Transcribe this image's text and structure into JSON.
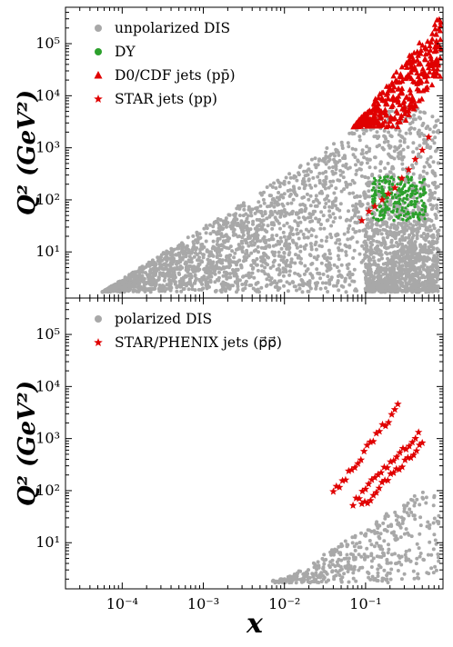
{
  "figure": {
    "xlabel": "x",
    "ylabel_top": "Q² (GeV²)",
    "ylabel_bottom": "Q² (GeV²)"
  },
  "chart_data": [
    {
      "type": "scatter",
      "panel": "top",
      "x_scale": "log",
      "y_scale": "log",
      "xlim": [
        2e-05,
        0.9
      ],
      "ylim": [
        1.3,
        500000
      ],
      "xticks": [
        "10⁻⁴",
        "10⁻³",
        "10⁻²",
        "10⁻¹"
      ],
      "yticks": [
        "10¹",
        "10²",
        "10³",
        "10⁴",
        "10⁵"
      ],
      "legend_position": "top-left",
      "colors": {
        "dis": "#a8a8a8",
        "dy": "#2ca02c",
        "jets": "#e00000"
      },
      "series": [
        {
          "name": "unpolarized DIS",
          "marker": "circle",
          "color": "#a8a8a8",
          "note": "dense band: roughly log-uniform fill bounded below by Q² ≈ 1.7 and above by Q² ≈ 30000·x (x from 3e-5 to 0.8)",
          "x_range": [
            3e-05,
            0.8
          ],
          "q2_min": 1.7
        },
        {
          "name": "DY",
          "marker": "circle",
          "color": "#2ca02c",
          "x_range": [
            0.12,
            0.55
          ],
          "q2_range": [
            40,
            280
          ]
        },
        {
          "name": "D0/CDF jets (pp̄)",
          "marker": "triangle",
          "color": "#e00000",
          "x_range": [
            0.04,
            0.85
          ],
          "q2_range": [
            2500,
            360000
          ]
        },
        {
          "name": "STAR jets (pp)",
          "marker": "star",
          "color": "#e00000",
          "points": [
            [
              0.09,
              40
            ],
            [
              0.11,
              60
            ],
            [
              0.13,
              75
            ],
            [
              0.16,
              100
            ],
            [
              0.19,
              130
            ],
            [
              0.23,
              170
            ],
            [
              0.28,
              260
            ],
            [
              0.34,
              380
            ],
            [
              0.41,
              600
            ],
            [
              0.5,
              900
            ],
            [
              0.6,
              1600
            ]
          ]
        }
      ]
    },
    {
      "type": "scatter",
      "panel": "bottom",
      "x_scale": "log",
      "y_scale": "log",
      "xlim": [
        2e-05,
        0.9
      ],
      "ylim": [
        1.3,
        500000
      ],
      "xticks": [
        "10⁻⁴",
        "10⁻³",
        "10⁻²",
        "10⁻¹"
      ],
      "yticks": [
        "10¹",
        "10²",
        "10³",
        "10⁴",
        "10⁵"
      ],
      "legend_position": "top-left",
      "series": [
        {
          "name": "polarized DIS",
          "marker": "circle",
          "color": "#a8a8a8",
          "x_range": [
            0.007,
            0.8
          ],
          "q2_range": [
            1.7,
            100
          ]
        },
        {
          "name": "STAR/PHENIX jets (p⃗p⃗)",
          "marker": "star",
          "color": "#e00000",
          "x_range": [
            0.04,
            0.5
          ],
          "q2_range": [
            50,
            4000
          ]
        }
      ]
    }
  ]
}
